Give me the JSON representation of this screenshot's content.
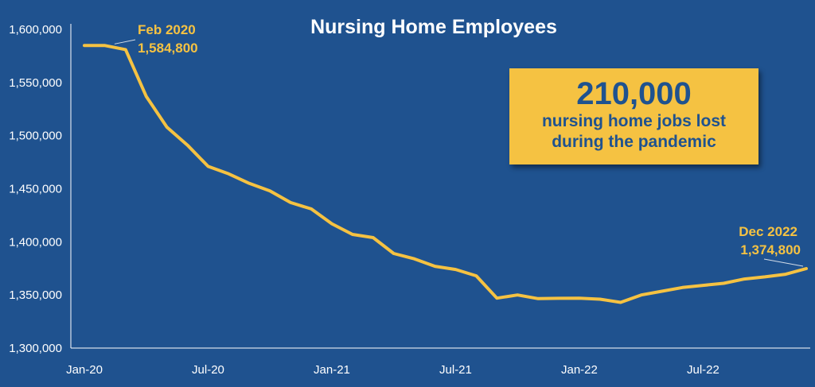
{
  "chart_data": {
    "type": "line",
    "title": "Nursing Home Employees",
    "ylim": [
      1300000,
      1600000
    ],
    "y_ticks": [
      1300000,
      1350000,
      1400000,
      1450000,
      1500000,
      1550000,
      1600000
    ],
    "y_tick_labels": [
      "1,300,000",
      "1,350,000",
      "1,400,000",
      "1,450,000",
      "1,500,000",
      "1,550,000",
      "1,600,000"
    ],
    "x_tick_labels": [
      "Jan-20",
      "Jul-20",
      "Jan-21",
      "Jul-21",
      "Jan-22",
      "Jul-22"
    ],
    "x_tick_dates": [
      "2020-01",
      "2020-07",
      "2021-01",
      "2021-07",
      "2022-01",
      "2022-07"
    ],
    "grid": false,
    "series": [
      {
        "color": "#f5c242",
        "x": [
          "2020-01",
          "2020-02",
          "2020-03",
          "2020-04",
          "2020-05",
          "2020-06",
          "2020-07",
          "2020-08",
          "2020-09",
          "2020-10",
          "2020-11",
          "2020-12",
          "2021-01",
          "2021-02",
          "2021-03",
          "2021-04",
          "2021-05",
          "2021-06",
          "2021-07",
          "2021-08",
          "2021-09",
          "2021-10",
          "2021-11",
          "2021-12",
          "2022-01",
          "2022-02",
          "2022-03",
          "2022-04",
          "2022-05",
          "2022-06",
          "2022-07",
          "2022-08",
          "2022-09",
          "2022-10",
          "2022-11",
          "2022-12"
        ],
        "values": [
          1584900,
          1584800,
          1581000,
          1537000,
          1508000,
          1491000,
          1471000,
          1464000,
          1455000,
          1448000,
          1437000,
          1431000,
          1417000,
          1407000,
          1404000,
          1389000,
          1384000,
          1377000,
          1374000,
          1368000,
          1347000,
          1350000,
          1346500,
          1346800,
          1347000,
          1346000,
          1343000,
          1350000,
          1353500,
          1357000,
          1359000,
          1361000,
          1365000,
          1367000,
          1369500,
          1374800
        ]
      }
    ],
    "annotations": [
      {
        "label": "Feb 2020",
        "value": "1,584,800"
      },
      {
        "label": "Dec 2022",
        "value": "1,374,800"
      }
    ]
  },
  "callout": {
    "big": "210,000",
    "line1": "nursing home jobs lost",
    "line2": "during the pandemic"
  }
}
